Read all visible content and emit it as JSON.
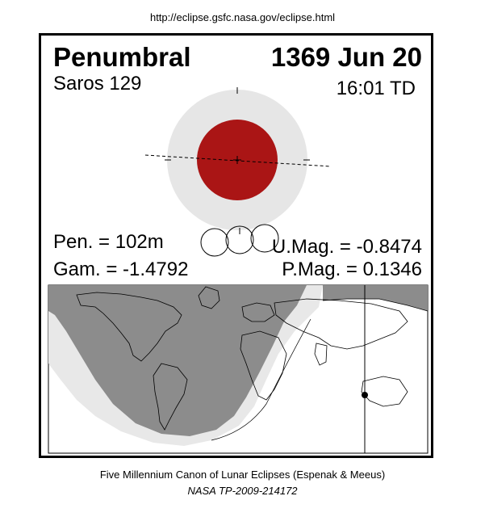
{
  "url": "http://eclipse.gsfc.nasa.gov/eclipse.html",
  "eclipse": {
    "type": "Penumbral",
    "date": "1369 Jun 20",
    "saros": "Saros 129",
    "time": "16:01 TD",
    "pen_duration": "Pen. = 102m",
    "gamma": "Gam. = -1.4792",
    "umbral_mag": "U.Mag. = -0.8474",
    "penumbral_mag": "P.Mag. = 0.1346"
  },
  "colors": {
    "moon": "#aa1515",
    "penumbra": "#e6e6e6",
    "night": "#8c8c8c",
    "partial_visibility": "#e8e8e8"
  },
  "footer": {
    "line1": "Five Millennium Canon of Lunar Eclipses (Espenak & Meeus)",
    "line2": "NASA TP-2009-214172"
  }
}
